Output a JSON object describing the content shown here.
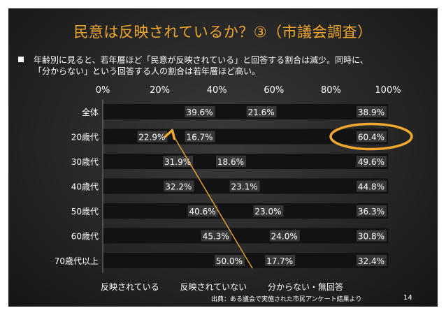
{
  "slide": {
    "title": "民意は反映されているか？③（市議会調査）",
    "bullet_line1": "年齢別に見ると、若年層ほど「民意が反映されている」と回答する割合は減少。同時に、",
    "bullet_line2": "「分からない」という回答する人の割合は若年層ほど高い。",
    "source": "出典：ある議会で実施された市民アンケート結果より",
    "page_number": "14"
  },
  "colors": {
    "title": "#f0a830",
    "accent": "#f0a830",
    "bar_track": "#121212",
    "bar_label_bg": "#555555"
  },
  "chart_data": {
    "type": "bar",
    "orientation": "horizontal",
    "stacked": true,
    "xlim": [
      0,
      100
    ],
    "x_ticks": [
      "0%",
      "20%",
      "40%",
      "60%",
      "80%",
      "100%"
    ],
    "categories": [
      "全体",
      "20歳代",
      "30歳代",
      "40歳代",
      "50歳代",
      "60歳代",
      "70歳代以上"
    ],
    "series": [
      {
        "name": "反映されている",
        "values": [
          39.6,
          22.9,
          31.9,
          32.2,
          40.6,
          45.3,
          50.0
        ],
        "labels": [
          "39.6%",
          "22.9%",
          "31.9%",
          "32.2%",
          "40.6%",
          "45.3%",
          "50.0%"
        ]
      },
      {
        "name": "反映されていない",
        "values": [
          21.6,
          16.7,
          18.6,
          23.1,
          23.0,
          24.0,
          17.7
        ],
        "labels": [
          "21.6%",
          "16.7%",
          "18.6%",
          "23.1%",
          "23.0%",
          "24.0%",
          "17.7%"
        ]
      },
      {
        "name": "分からない・無回答",
        "values": [
          38.9,
          60.4,
          49.6,
          44.8,
          36.3,
          30.8,
          32.4
        ],
        "labels": [
          "38.9%",
          "60.4%",
          "49.6%",
          "44.8%",
          "36.3%",
          "30.8%",
          "32.4%"
        ]
      }
    ],
    "legend": "bottom",
    "annotations": [
      "arrow from 70歳代以上 to 20歳代 boundary",
      "ellipse around 20歳代 60.4%"
    ]
  }
}
